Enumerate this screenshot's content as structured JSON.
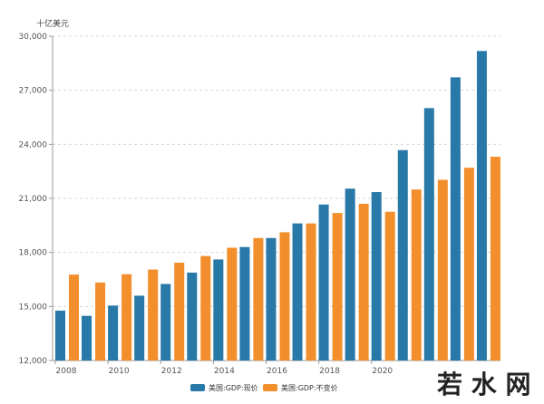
{
  "chart_data": {
    "type": "bar",
    "ylabel": "十亿美元",
    "ylim": [
      12000,
      30000
    ],
    "yticks": [
      "12,000",
      "15,000",
      "18,000",
      "21,000",
      "24,000",
      "27,000",
      "30,000"
    ],
    "ytick_values": [
      12000,
      15000,
      18000,
      21000,
      24000,
      27000,
      30000
    ],
    "categories": [
      2008,
      2009,
      2010,
      2011,
      2012,
      2013,
      2014,
      2015,
      2016,
      2017,
      2018,
      2019,
      2020,
      2021,
      2022,
      2023,
      2024
    ],
    "xtick_labels": {
      "2008": "2008",
      "2010": "2010",
      "2012": "2012",
      "2014": "2014",
      "2016": "2016",
      "2018": "2018",
      "2020": "2020"
    },
    "series": [
      {
        "name": "美国:GDP:现价",
        "color": "#2878a8",
        "values": [
          14770,
          14480,
          15050,
          15600,
          16250,
          16880,
          17610,
          18300,
          18800,
          19610,
          20660,
          21540,
          21350,
          23680,
          26010,
          27720,
          29180
        ]
      },
      {
        "name": "美国:GDP:不变价",
        "color": "#f28e2b",
        "values": [
          16770,
          16330,
          16790,
          17050,
          17430,
          17800,
          18260,
          18800,
          19120,
          19610,
          20190,
          20700,
          20260,
          21490,
          22030,
          22700,
          23310
        ]
      }
    ],
    "grid": "horizontal-dashed",
    "legend": "bottom-center"
  },
  "watermark": {
    "text": "若 水 网"
  }
}
